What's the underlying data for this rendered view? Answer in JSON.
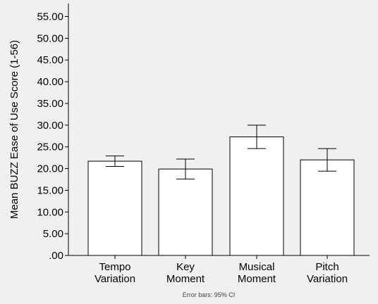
{
  "chart_data": {
    "type": "bar",
    "title": "",
    "xlabel": "",
    "ylabel": "Mean BUZZ Ease of Use Score (1-56)",
    "ylim": [
      0,
      58
    ],
    "yticks": [
      ".00",
      "5.00",
      "10.00",
      "15.00",
      "20.00",
      "25.00",
      "30.00",
      "35.00",
      "40.00",
      "45.00",
      "50.00",
      "55.00"
    ],
    "ytick_values": [
      0,
      5,
      10,
      15,
      20,
      25,
      30,
      35,
      40,
      45,
      50,
      55
    ],
    "categories": [
      {
        "line1": "Tempo",
        "line2": "Variation"
      },
      {
        "line1": "Key",
        "line2": "Moment"
      },
      {
        "line1": "Musical",
        "line2": "Moment"
      },
      {
        "line1": "Pitch",
        "line2": "Variation"
      }
    ],
    "values": [
      21.7,
      19.9,
      27.3,
      22.0
    ],
    "ci_low": [
      20.5,
      17.6,
      24.6,
      19.4
    ],
    "ci_high": [
      22.9,
      22.2,
      30.0,
      24.6
    ],
    "grid": false,
    "bar_fill": "#ffffff",
    "bar_stroke": "#000000",
    "footnote": "Error bars: 95% CI"
  }
}
